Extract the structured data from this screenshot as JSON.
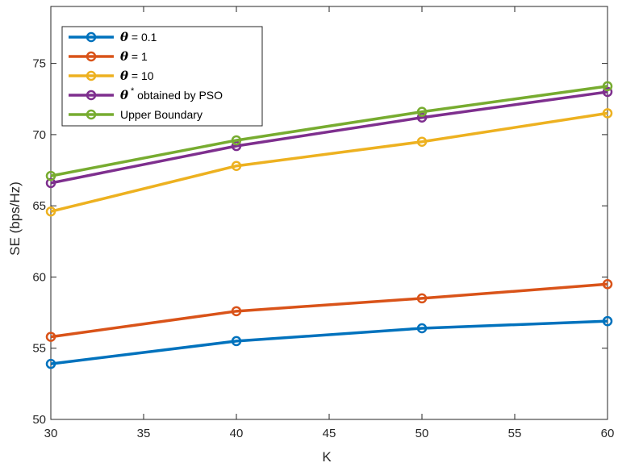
{
  "chart_data": {
    "type": "line",
    "xlabel": "K",
    "ylabel": "SE (bps/Hz)",
    "x": [
      30,
      40,
      50,
      60
    ],
    "xlim": [
      30,
      60
    ],
    "ylim": [
      50,
      79
    ],
    "xticks": [
      "30",
      "35",
      "40",
      "45",
      "50",
      "55",
      "60"
    ],
    "yticks": [
      "50",
      "55",
      "60",
      "65",
      "70",
      "75"
    ],
    "grid": false,
    "legend_position": "top-left",
    "series": [
      {
        "name_symbol": "θ",
        "name": " = 0.1",
        "color": "#0072BD",
        "values": [
          53.9,
          55.5,
          56.4,
          56.9
        ]
      },
      {
        "name_symbol": "θ",
        "name": " = 1",
        "color": "#D95319",
        "values": [
          55.8,
          57.6,
          58.5,
          59.5
        ]
      },
      {
        "name_symbol": "θ",
        "name": " = 10",
        "color": "#EDB120",
        "values": [
          64.6,
          67.8,
          69.5,
          71.5
        ]
      },
      {
        "name_symbol": "θ",
        "name_sup": "*",
        "name": " obtained by PSO",
        "color": "#7E2F8E",
        "values": [
          66.6,
          69.2,
          71.2,
          73.0
        ]
      },
      {
        "name_symbol": "",
        "name": "Upper Boundary",
        "color": "#77AC30",
        "values": [
          67.1,
          69.6,
          71.6,
          73.4
        ]
      }
    ]
  }
}
